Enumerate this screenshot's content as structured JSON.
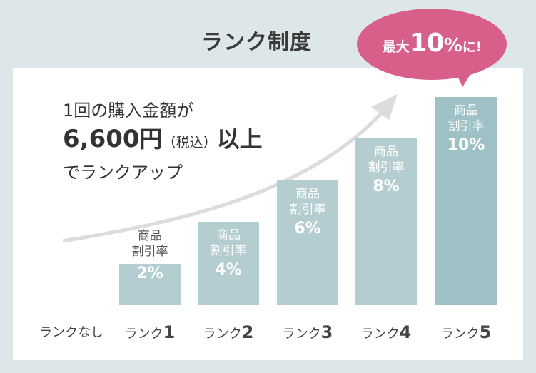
{
  "title": "ランク制度",
  "badge": {
    "prefix": "最大",
    "value": "10",
    "unit": "%",
    "suffix": "に!"
  },
  "lead": {
    "line1": "1回の購入金額が",
    "amount": "6,600",
    "yen": "円",
    "tax": "（税込）",
    "suffix": "以上",
    "line3": "でランクアップ"
  },
  "colors": {
    "background": "#dde6e8",
    "bar_light": "#b4cdd1",
    "bar_dark": "#9ec1c6",
    "badge": "#d85f8a",
    "arrow": "#dcdcdc"
  },
  "chart_data": {
    "type": "bar",
    "categories": [
      "ランクなし",
      "ランク1",
      "ランク2",
      "ランク3",
      "ランク4",
      "ランク5"
    ],
    "values": [
      0,
      2,
      4,
      6,
      8,
      10
    ],
    "bar_caption": "商品\n割引率",
    "value_labels": [
      "",
      "2%",
      "4%",
      "6%",
      "8%",
      "10%"
    ],
    "ylim": [
      0,
      10
    ],
    "title": "",
    "xlabel": "",
    "ylabel": ""
  },
  "ranks": [
    {
      "prefix": "ランクなし",
      "num": ""
    },
    {
      "prefix": "ランク",
      "num": "1"
    },
    {
      "prefix": "ランク",
      "num": "2"
    },
    {
      "prefix": "ランク",
      "num": "3"
    },
    {
      "prefix": "ランク",
      "num": "4"
    },
    {
      "prefix": "ランク",
      "num": "5"
    }
  ],
  "bar_caption_line1": "商品",
  "bar_caption_line2": "割引率"
}
